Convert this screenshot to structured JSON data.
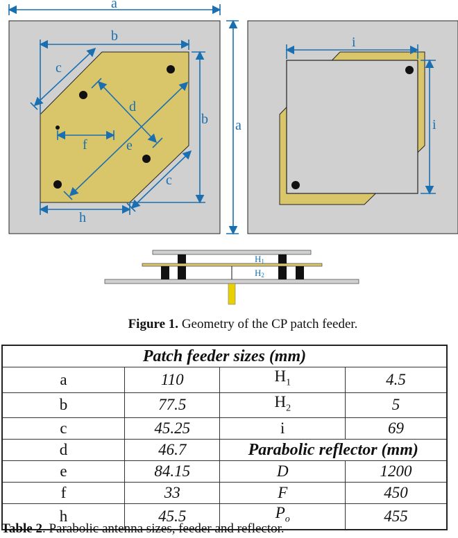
{
  "figure": {
    "caption_label": "Figure 1.",
    "caption_text": " Geometry of the CP patch feeder.",
    "dimension_labels": {
      "a_top": "a",
      "a_side": "a",
      "b_top": "b",
      "b_side": "b",
      "c_left": "c",
      "c_right": "c",
      "d": "d",
      "e": "e",
      "f": "f",
      "h": "h",
      "i_top": "i",
      "i_side": "i",
      "H1": "H1",
      "H2": "H2"
    },
    "colors": {
      "substrate": "#d0d0d0",
      "patch": "#d9c66b",
      "dimension_line": "#1a6fb0",
      "probe": "#e8d100"
    }
  },
  "table": {
    "title": "Patch feeder sizes (mm)",
    "rows": [
      [
        "a",
        "110",
        "H1",
        "4.5"
      ],
      [
        "b",
        "77.5",
        "H2",
        "5"
      ],
      [
        "c",
        "45.25",
        "i",
        "69"
      ]
    ],
    "reflector_row": {
      "label": "d",
      "value": "46.7",
      "header": "Parabolic reflector (mm)"
    },
    "rows2": [
      [
        "e",
        "84.15",
        "D",
        "1200"
      ],
      [
        "f",
        "33",
        "F",
        "450"
      ],
      [
        "h",
        "45.5",
        "Po",
        "455"
      ]
    ],
    "caption_label": "Table 2",
    "caption_text": ". Parabolic antenna sizes, feeder and reflector."
  }
}
